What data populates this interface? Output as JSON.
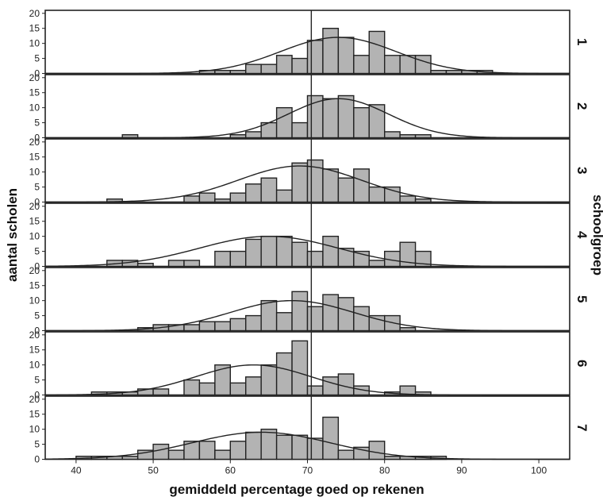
{
  "chart_data": {
    "type": "bar",
    "subtype": "histogram-panels-with-normal-curve",
    "xlabel": "gemiddeld percentage goed op rekenen",
    "ylabel": "aantal scholen",
    "right_label": "schoolgroep",
    "xlim": [
      36,
      104
    ],
    "ylim": [
      0,
      21
    ],
    "x_ticks": [
      40,
      50,
      60,
      70,
      80,
      90,
      100
    ],
    "y_ticks": [
      0,
      5,
      10,
      15,
      20
    ],
    "reference_line_x": 70.5,
    "bin_width": 2,
    "bins": [
      40,
      42,
      44,
      46,
      48,
      50,
      52,
      54,
      56,
      58,
      60,
      62,
      64,
      66,
      68,
      70,
      72,
      74,
      76,
      78,
      80,
      82,
      84,
      86,
      88,
      90,
      92
    ],
    "colors": {
      "bar_fill": "#b3b3b3",
      "bar_edge": "#222222",
      "curve": "#222222",
      "frame": "#222222",
      "reference": "#222222"
    },
    "series": [
      {
        "name": "1",
        "values": [
          0,
          0,
          0,
          0,
          0,
          0,
          0,
          0,
          1,
          1,
          1,
          3,
          3,
          6,
          5,
          11,
          15,
          12,
          6,
          14,
          6,
          6,
          6,
          1,
          1,
          1,
          1
        ],
        "normal": {
          "mean": 74,
          "sd": 7.5,
          "peak": 12
        }
      },
      {
        "name": "2",
        "values": [
          0,
          0,
          0,
          1,
          0,
          0,
          0,
          0,
          0,
          0,
          1,
          2,
          5,
          10,
          5,
          14,
          13,
          14,
          10,
          11,
          2,
          1,
          1,
          0,
          0,
          0,
          0
        ],
        "normal": {
          "mean": 74,
          "sd": 6.5,
          "peak": 13
        }
      },
      {
        "name": "3",
        "values": [
          0,
          0,
          1,
          0,
          0,
          0,
          0,
          2,
          3,
          1,
          3,
          6,
          8,
          4,
          13,
          14,
          11,
          8,
          11,
          5,
          5,
          2,
          1,
          0,
          0,
          0,
          0
        ],
        "normal": {
          "mean": 69,
          "sd": 8,
          "peak": 12
        }
      },
      {
        "name": "4",
        "values": [
          0,
          0,
          2,
          2,
          1,
          0,
          2,
          2,
          0,
          5,
          5,
          9,
          10,
          10,
          8,
          5,
          10,
          6,
          5,
          2,
          5,
          8,
          5,
          0,
          0,
          0,
          0
        ],
        "normal": {
          "mean": 65,
          "sd": 9,
          "peak": 10
        }
      },
      {
        "name": "5",
        "values": [
          0,
          0,
          0,
          0,
          1,
          2,
          2,
          2,
          3,
          3,
          4,
          5,
          10,
          6,
          13,
          8,
          12,
          11,
          8,
          5,
          5,
          1,
          0,
          0,
          0,
          0,
          0
        ],
        "normal": {
          "mean": 68,
          "sd": 8,
          "peak": 10
        }
      },
      {
        "name": "6",
        "values": [
          0,
          1,
          1,
          1,
          2,
          2,
          0,
          5,
          4,
          10,
          4,
          6,
          10,
          14,
          18,
          3,
          6,
          7,
          3,
          0,
          1,
          3,
          1,
          0,
          0,
          0,
          0
        ],
        "normal": {
          "mean": 63,
          "sd": 7.5,
          "peak": 10
        }
      },
      {
        "name": "7",
        "values": [
          1,
          1,
          1,
          1,
          3,
          5,
          3,
          6,
          6,
          3,
          6,
          9,
          10,
          8,
          8,
          7,
          14,
          3,
          4,
          6,
          1,
          1,
          1,
          1,
          0,
          0,
          0
        ],
        "normal": {
          "mean": 64,
          "sd": 9,
          "peak": 9
        }
      }
    ]
  }
}
